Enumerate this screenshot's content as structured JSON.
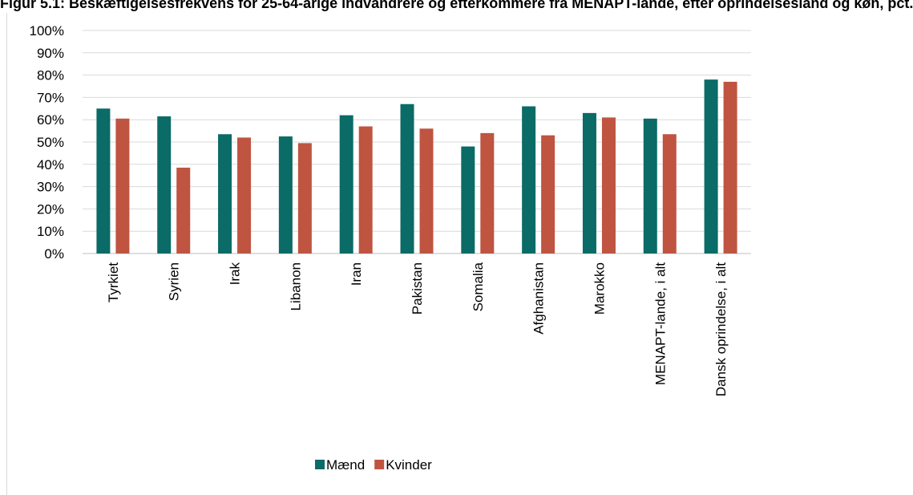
{
  "title": "Figur 5.1: Beskæftigelsesfrekvens for 25-64-årige indvandrere og efterkommere fra MENAPT-lande, efter oprindelsesland og køn, pct.",
  "chart_data": {
    "type": "bar",
    "categories": [
      "Tyrkiet",
      "Syrien",
      "Irak",
      "Libanon",
      "Iran",
      "Pakistan",
      "Somalia",
      "Afghanistan",
      "Marokko",
      "MENAPT-lande, i alt",
      "Dansk oprindelse, i alt"
    ],
    "series": [
      {
        "name": "Mænd",
        "color": "#0b6b66",
        "values": [
          65,
          61.5,
          53.5,
          52.5,
          62,
          67,
          48,
          66,
          63,
          60.5,
          78
        ]
      },
      {
        "name": "Kvinder",
        "color": "#bf5441",
        "values": [
          60.5,
          38.5,
          52,
          49.5,
          57,
          56,
          54,
          53,
          61,
          53.5,
          77
        ]
      }
    ],
    "ylim": [
      0,
      100
    ],
    "yticks": [
      "0%",
      "10%",
      "20%",
      "30%",
      "40%",
      "50%",
      "60%",
      "70%",
      "80%",
      "90%",
      "100%"
    ],
    "grid": true,
    "legend_position": "bottom"
  }
}
